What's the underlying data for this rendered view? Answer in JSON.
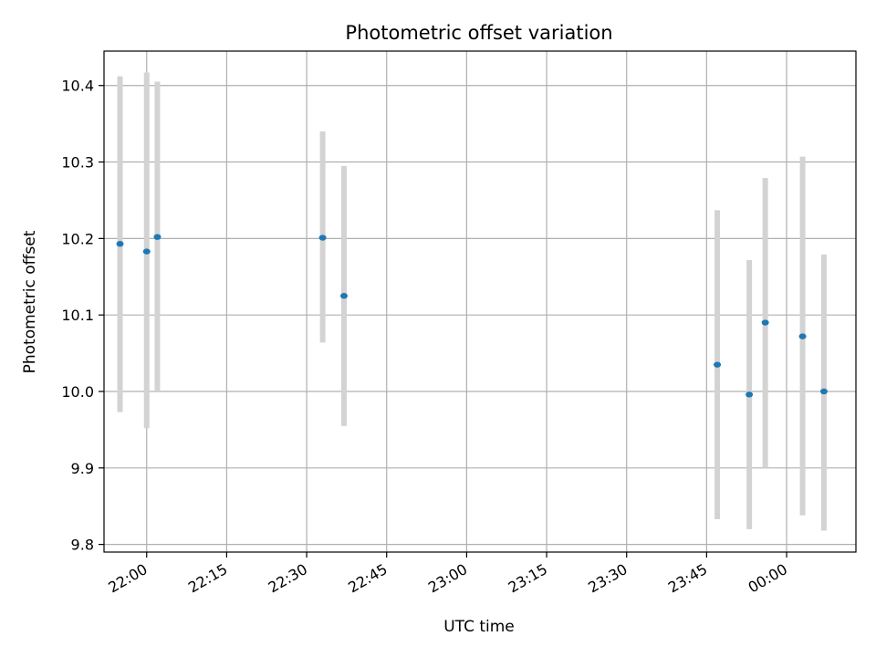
{
  "chart_data": {
    "type": "scatter",
    "title": "Photometric offset variation",
    "xlabel": "UTC time",
    "ylabel": "Photometric offset",
    "x_axis_kind": "time",
    "xlim": [
      "21:52",
      "00:13"
    ],
    "ylim": [
      9.79,
      10.445
    ],
    "grid": true,
    "legend": "none",
    "xticks": [
      "22:00",
      "22:15",
      "22:30",
      "22:45",
      "23:00",
      "23:15",
      "23:30",
      "23:45",
      "00:00"
    ],
    "yticks": [
      9.8,
      9.9,
      10.0,
      10.1,
      10.2,
      10.3,
      10.4
    ],
    "ytick_labels": [
      "9.8",
      "9.9",
      "10.0",
      "10.1",
      "10.2",
      "10.3",
      "10.4"
    ],
    "colors": {
      "point": "#1f77b4",
      "errorbar": "#d3d3d3",
      "grid": "#b0b0b0"
    },
    "points": [
      {
        "x": "21:55",
        "y": 10.193,
        "ylow": 9.973,
        "yhigh": 10.412
      },
      {
        "x": "22:00",
        "y": 10.183,
        "ylow": 9.952,
        "yhigh": 10.417
      },
      {
        "x": "22:02",
        "y": 10.202,
        "ylow": 10.0,
        "yhigh": 10.405
      },
      {
        "x": "22:33",
        "y": 10.201,
        "ylow": 10.064,
        "yhigh": 10.34
      },
      {
        "x": "22:37",
        "y": 10.125,
        "ylow": 9.955,
        "yhigh": 10.295
      },
      {
        "x": "23:47",
        "y": 10.035,
        "ylow": 9.833,
        "yhigh": 10.237
      },
      {
        "x": "23:53",
        "y": 9.996,
        "ylow": 9.82,
        "yhigh": 10.172
      },
      {
        "x": "23:56",
        "y": 10.09,
        "ylow": 9.9,
        "yhigh": 10.279
      },
      {
        "x": "00:03",
        "y": 10.072,
        "ylow": 9.838,
        "yhigh": 10.307
      },
      {
        "x": "00:07",
        "y": 10.0,
        "ylow": 9.818,
        "yhigh": 10.179
      }
    ]
  }
}
